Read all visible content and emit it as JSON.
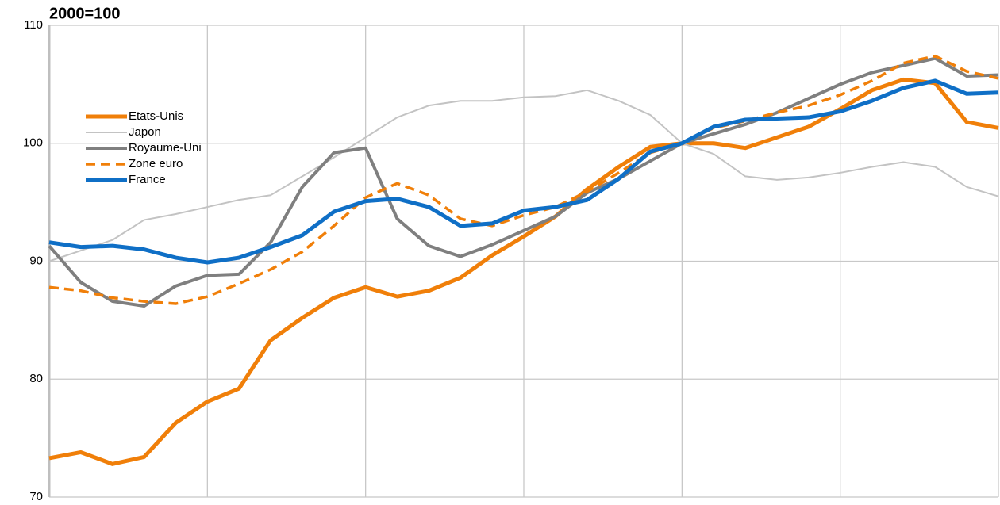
{
  "chart_data": {
    "type": "line",
    "title": "2000=100",
    "ylim": [
      70,
      110
    ],
    "yticks": [
      70,
      80,
      90,
      100,
      110
    ],
    "grid": true,
    "legend": "upper left",
    "series": [
      {
        "name": "Etats-Unis",
        "color": "#f07f09",
        "width": 5,
        "dashed": false,
        "values": [
          73.3,
          73.8,
          72.8,
          73.4,
          76.3,
          78.1,
          79.2,
          83.3,
          85.2,
          86.9,
          87.8,
          87.0,
          87.5,
          88.6,
          90.5,
          92.1,
          93.8,
          96.1,
          98.0,
          99.7,
          100,
          100,
          99.6,
          100.5,
          101.4,
          102.9,
          104.5,
          105.4,
          105.1,
          101.8,
          101.3
        ]
      },
      {
        "name": "Japon",
        "color": "#c3c3c3",
        "width": 2,
        "dashed": false,
        "values": [
          90,
          90.9,
          91.8,
          93.5,
          94.0,
          94.6,
          95.2,
          95.6,
          97.2,
          98.8,
          100.5,
          102.2,
          103.2,
          103.6,
          103.6,
          103.9,
          104.0,
          104.5,
          103.6,
          102.4,
          100,
          99.1,
          97.2,
          96.9,
          97.1,
          97.5,
          98.0,
          98.4,
          98.0,
          96.3,
          95.5
        ]
      },
      {
        "name": "Royaume-Uni",
        "color": "#7f7f7f",
        "width": 4,
        "dashed": false,
        "values": [
          91.3,
          88.2,
          86.6,
          86.2,
          87.9,
          88.8,
          88.9,
          91.6,
          96.3,
          99.2,
          99.6,
          93.6,
          91.3,
          90.4,
          91.4,
          92.6,
          93.8,
          95.8,
          97.0,
          98.5,
          100,
          100.8,
          101.6,
          102.6,
          103.8,
          105.0,
          106.0,
          106.6,
          107.2,
          105.7,
          105.8
        ]
      },
      {
        "name": "Zone euro",
        "color": "#f07f09",
        "width": 3.5,
        "dashed": true,
        "values": [
          87.8,
          87.5,
          86.9,
          86.6,
          86.4,
          87.0,
          88.1,
          89.3,
          90.8,
          93.0,
          95.4,
          96.6,
          95.6,
          93.6,
          93.0,
          93.9,
          94.6,
          95.9,
          97.5,
          99.2,
          100,
          101.3,
          101.9,
          102.6,
          103.2,
          104.1,
          105.3,
          106.8,
          107.4,
          106.1,
          105.5
        ]
      },
      {
        "name": "France",
        "color": "#0f6fc6",
        "width": 5,
        "dashed": false,
        "values": [
          91.6,
          91.2,
          91.3,
          91.0,
          90.3,
          89.9,
          90.3,
          91.2,
          92.2,
          94.2,
          95.1,
          95.3,
          94.6,
          93.0,
          93.2,
          94.3,
          94.6,
          95.2,
          97.0,
          99.3,
          100,
          101.4,
          102.0,
          102.1,
          102.2,
          102.7,
          103.6,
          104.7,
          105.3,
          104.2,
          104.3
        ]
      }
    ]
  }
}
